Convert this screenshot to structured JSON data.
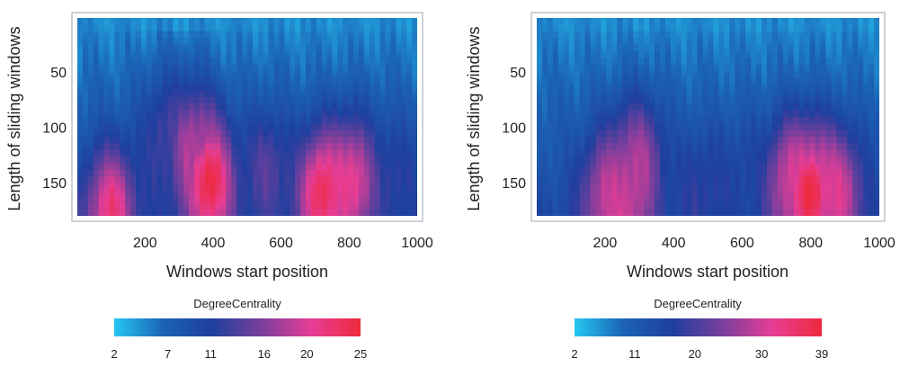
{
  "chart_data": [
    {
      "type": "heatmap",
      "title": "",
      "xlabel": "Windows start position",
      "ylabel": "Length of sliding windows",
      "xlim": [
        1,
        1000
      ],
      "ylim": [
        180,
        1
      ],
      "x_ticks": [
        200,
        400,
        600,
        800,
        1000
      ],
      "y_ticks": [
        50,
        100,
        150
      ],
      "colorbar": {
        "title": "DegreeCentrality",
        "min": 2,
        "max": 25,
        "ticks": [
          2,
          7,
          11,
          16,
          20,
          25
        ],
        "colors": [
          "#25c7f0",
          "#1b62b5",
          "#1f3f9e",
          "#7a3f9c",
          "#e63d95",
          "#ee2a3d"
        ]
      },
      "hotspots": [
        {
          "x": 100,
          "y": 175,
          "value": 22
        },
        {
          "x": 390,
          "y": 150,
          "value": 25
        },
        {
          "x": 340,
          "y": 120,
          "value": 18
        },
        {
          "x": 720,
          "y": 160,
          "value": 24
        },
        {
          "x": 810,
          "y": 150,
          "value": 21
        },
        {
          "x": 260,
          "y": 110,
          "value": 13
        },
        {
          "x": 560,
          "y": 140,
          "value": 14
        },
        {
          "x": 930,
          "y": 150,
          "value": 12
        }
      ]
    },
    {
      "type": "heatmap",
      "title": "",
      "xlabel": "Windows start position",
      "ylabel": "Length of sliding windows",
      "xlim": [
        1,
        1000
      ],
      "ylim": [
        180,
        1
      ],
      "x_ticks": [
        200,
        400,
        600,
        800,
        1000
      ],
      "y_ticks": [
        50,
        100,
        150
      ],
      "colorbar": {
        "title": "DegreeCentrality",
        "min": 2,
        "max": 39,
        "ticks": [
          2,
          11,
          20,
          30,
          39
        ],
        "colors": [
          "#25c7f0",
          "#1b62b5",
          "#1f3f9e",
          "#7a3f9c",
          "#e63d95",
          "#ee2a3d"
        ]
      },
      "hotspots": [
        {
          "x": 200,
          "y": 165,
          "value": 28
        },
        {
          "x": 300,
          "y": 130,
          "value": 26
        },
        {
          "x": 260,
          "y": 170,
          "value": 30
        },
        {
          "x": 800,
          "y": 160,
          "value": 39
        },
        {
          "x": 740,
          "y": 150,
          "value": 30
        },
        {
          "x": 880,
          "y": 160,
          "value": 31
        },
        {
          "x": 600,
          "y": 150,
          "value": 16
        },
        {
          "x": 480,
          "y": 160,
          "value": 18
        }
      ]
    }
  ]
}
